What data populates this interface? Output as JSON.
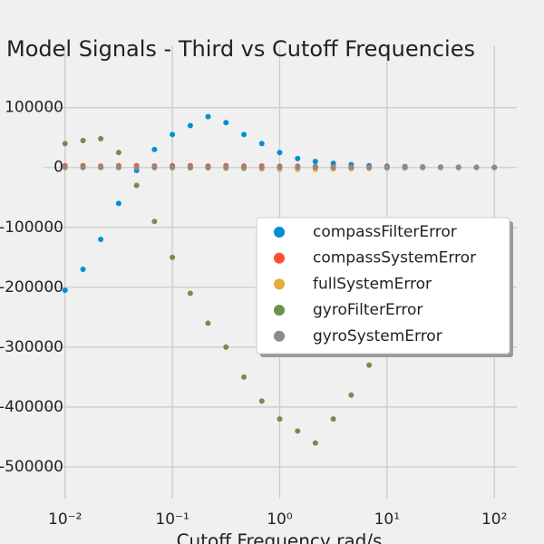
{
  "chart_data": {
    "type": "scatter",
    "title": "Model Signals - Third vs Cutoff Frequencies",
    "x_label": "Cutoff Frequency rad/s",
    "x": [
      0.01,
      0.0147,
      0.0215,
      0.0316,
      0.0464,
      0.0681,
      0.1,
      0.147,
      0.215,
      0.316,
      0.464,
      0.681,
      1,
      1.47,
      2.15,
      3.16,
      4.64,
      6.81,
      10,
      14.7,
      21.5,
      31.6,
      46.4,
      68.1,
      100
    ],
    "series": [
      {
        "name": "compassFilterError",
        "color": "#008fd5",
        "values": [
          -205000,
          -170000,
          -120000,
          -60000,
          -5000,
          30000,
          55000,
          70000,
          85000,
          75000,
          55000,
          40000,
          25000,
          15000,
          10000,
          7000,
          5000,
          3000,
          2000,
          1500,
          1000,
          700,
          500,
          300,
          200
        ]
      },
      {
        "name": "compassSystemError",
        "color": "#fc4f30",
        "values": [
          3000,
          3000,
          2500,
          3000,
          3000,
          2500,
          3000,
          3000,
          2500,
          3000,
          2500,
          2500,
          2000,
          2000,
          1500,
          1500,
          1000,
          1000,
          800,
          500,
          400,
          300,
          200,
          100,
          100
        ]
      },
      {
        "name": "fullSystemError",
        "color": "#e5ae38",
        "values": [
          0,
          0,
          0,
          0,
          0,
          0,
          -500,
          -1000,
          -1000,
          -1500,
          -2000,
          -2500,
          -3000,
          -3000,
          -3000,
          -2500,
          -2000,
          -1500,
          -1000,
          -500,
          -300,
          -200,
          -100,
          0,
          0
        ]
      },
      {
        "name": "gyroFilterError",
        "color": "#6d904f",
        "values": [
          40000,
          45000,
          48000,
          25000,
          -30000,
          -90000,
          -150000,
          -210000,
          -260000,
          -300000,
          -350000,
          -390000,
          -420000,
          -440000,
          -460000,
          -420000,
          -380000,
          -330000,
          -300000,
          null,
          null,
          null,
          null,
          null,
          null
        ]
      },
      {
        "name": "gyroSystemError",
        "color": "#8b8b8b",
        "values": [
          0,
          0,
          0,
          0,
          0,
          0,
          0,
          0,
          0,
          0,
          0,
          0,
          0,
          0,
          0,
          0,
          0,
          0,
          0,
          0,
          0,
          0,
          0,
          0,
          0
        ]
      }
    ],
    "xscale": "log",
    "xlim": [
      0.0063,
      162
    ],
    "xticks": [
      {
        "value": 0.01,
        "label": "10⁻²"
      },
      {
        "value": 0.1,
        "label": "10⁻¹"
      },
      {
        "value": 1,
        "label": "10⁰"
      },
      {
        "value": 10,
        "label": "10¹"
      },
      {
        "value": 100,
        "label": "10²"
      }
    ],
    "ylim": [
      -553000,
      204000
    ],
    "yticks": [
      100000,
      0,
      -100000,
      -200000,
      -300000,
      -400000,
      -500000
    ],
    "grid": true,
    "legend": "right"
  }
}
